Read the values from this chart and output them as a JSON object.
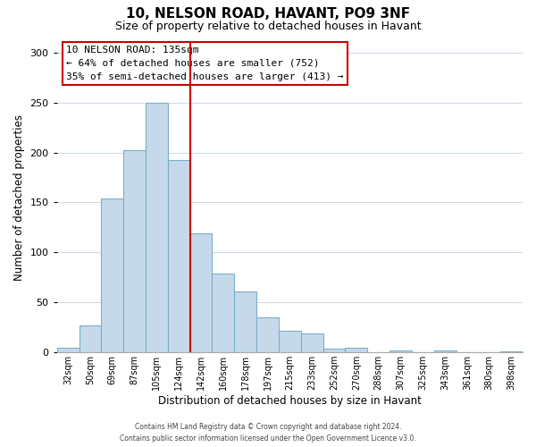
{
  "title": "10, NELSON ROAD, HAVANT, PO9 3NF",
  "subtitle": "Size of property relative to detached houses in Havant",
  "xlabel": "Distribution of detached houses by size in Havant",
  "ylabel": "Number of detached properties",
  "categories": [
    "32sqm",
    "50sqm",
    "69sqm",
    "87sqm",
    "105sqm",
    "124sqm",
    "142sqm",
    "160sqm",
    "178sqm",
    "197sqm",
    "215sqm",
    "233sqm",
    "252sqm",
    "270sqm",
    "288sqm",
    "307sqm",
    "325sqm",
    "343sqm",
    "361sqm",
    "380sqm",
    "398sqm"
  ],
  "values": [
    5,
    27,
    154,
    202,
    250,
    192,
    119,
    79,
    61,
    35,
    22,
    19,
    4,
    5,
    0,
    2,
    0,
    2,
    0,
    0,
    1
  ],
  "bar_color": "#c6d9ea",
  "bar_edge_color": "#7aafc8",
  "vline_color": "#cc0000",
  "ylim": [
    0,
    310
  ],
  "yticks": [
    0,
    50,
    100,
    150,
    200,
    250,
    300
  ],
  "annotation_title": "10 NELSON ROAD: 135sqm",
  "annotation_line1": "← 64% of detached houses are smaller (752)",
  "annotation_line2": "35% of semi-detached houses are larger (413) →",
  "annotation_box_color": "#ffffff",
  "annotation_box_edge": "#cc0000",
  "footer_line1": "Contains HM Land Registry data © Crown copyright and database right 2024.",
  "footer_line2": "Contains public sector information licensed under the Open Government Licence v3.0.",
  "background_color": "#ffffff",
  "grid_color": "#d0dce8",
  "spine_color": "#aaaaaa"
}
